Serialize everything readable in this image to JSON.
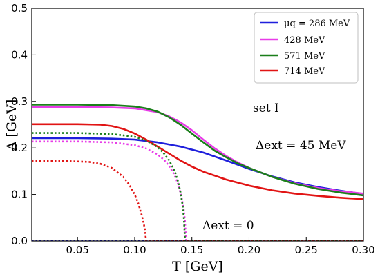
{
  "chart_data": {
    "type": "line",
    "xlabel": "T [GeV]",
    "ylabel": "Δ [GeV]",
    "xlim": [
      0.01,
      0.3
    ],
    "ylim": [
      0.0,
      0.5
    ],
    "xticks": [
      "0.05",
      "0.10",
      "0.15",
      "0.20",
      "0.25",
      "0.30"
    ],
    "yticks": [
      "0.0",
      "0.1",
      "0.2",
      "0.3",
      "0.4",
      "0.5"
    ],
    "grid": false,
    "legend_position": "top-right",
    "legend": [
      "μq = 286 MeV",
      "428 MeV",
      "571 MeV",
      "714 MeV"
    ],
    "annotations": [
      "set I",
      "Δext = 45 MeV",
      "Δext = 0"
    ],
    "series": [
      {
        "name": "μq = 286 MeV",
        "style": "solid",
        "color": "#1f1fdc",
        "x": [
          0.01,
          0.05,
          0.08,
          0.1,
          0.12,
          0.14,
          0.16,
          0.18,
          0.2,
          0.22,
          0.24,
          0.26,
          0.28,
          0.3
        ],
        "y": [
          0.221,
          0.221,
          0.22,
          0.218,
          0.212,
          0.203,
          0.19,
          0.173,
          0.155,
          0.139,
          0.126,
          0.116,
          0.108,
          0.101
        ]
      },
      {
        "name": "428 MeV",
        "style": "solid",
        "color": "#e83ce8",
        "x": [
          0.01,
          0.05,
          0.08,
          0.1,
          0.12,
          0.13,
          0.14,
          0.15,
          0.16,
          0.17,
          0.18,
          0.19,
          0.2,
          0.22,
          0.24,
          0.26,
          0.28,
          0.3
        ],
        "y": [
          0.288,
          0.288,
          0.287,
          0.285,
          0.277,
          0.268,
          0.255,
          0.238,
          0.218,
          0.199,
          0.183,
          0.169,
          0.157,
          0.138,
          0.124,
          0.114,
          0.107,
          0.102
        ]
      },
      {
        "name": "571 MeV",
        "style": "solid",
        "color": "#1a7f1a",
        "x": [
          0.01,
          0.05,
          0.08,
          0.1,
          0.11,
          0.12,
          0.13,
          0.14,
          0.15,
          0.16,
          0.17,
          0.18,
          0.19,
          0.2,
          0.22,
          0.24,
          0.26,
          0.28,
          0.3
        ],
        "y": [
          0.293,
          0.293,
          0.292,
          0.289,
          0.285,
          0.278,
          0.266,
          0.25,
          0.231,
          0.212,
          0.194,
          0.18,
          0.167,
          0.157,
          0.138,
          0.123,
          0.112,
          0.104,
          0.098
        ]
      },
      {
        "name": "714 MeV",
        "style": "solid",
        "color": "#e11414",
        "x": [
          0.01,
          0.05,
          0.07,
          0.08,
          0.09,
          0.1,
          0.11,
          0.12,
          0.13,
          0.14,
          0.15,
          0.16,
          0.18,
          0.2,
          0.22,
          0.24,
          0.26,
          0.28,
          0.3
        ],
        "y": [
          0.251,
          0.251,
          0.25,
          0.247,
          0.241,
          0.231,
          0.218,
          0.203,
          0.188,
          0.173,
          0.16,
          0.149,
          0.132,
          0.119,
          0.109,
          0.102,
          0.097,
          0.093,
          0.09
        ]
      },
      {
        "name": "",
        "style": "dotted",
        "color": "#1f1fdc",
        "x": [
          0.01,
          0.3
        ],
        "y": [
          0.0,
          0.0
        ]
      },
      {
        "name": "",
        "style": "dotted",
        "color": "#e83ce8",
        "x": [
          0.01,
          0.05,
          0.08,
          0.1,
          0.11,
          0.12,
          0.125,
          0.13,
          0.135,
          0.138,
          0.141,
          0.143,
          0.144,
          0.145,
          0.3
        ],
        "y": [
          0.214,
          0.214,
          0.212,
          0.206,
          0.199,
          0.186,
          0.176,
          0.162,
          0.141,
          0.122,
          0.094,
          0.066,
          0.041,
          0.0,
          0.0
        ]
      },
      {
        "name": "",
        "style": "dotted",
        "color": "#1a7f1a",
        "x": [
          0.01,
          0.05,
          0.08,
          0.1,
          0.11,
          0.12,
          0.125,
          0.13,
          0.135,
          0.138,
          0.14,
          0.142,
          0.143,
          0.144,
          0.3
        ],
        "y": [
          0.232,
          0.232,
          0.23,
          0.224,
          0.216,
          0.202,
          0.19,
          0.174,
          0.15,
          0.127,
          0.105,
          0.075,
          0.05,
          0.0,
          0.0
        ]
      },
      {
        "name": "",
        "style": "dotted",
        "color": "#e11414",
        "x": [
          0.01,
          0.04,
          0.06,
          0.07,
          0.08,
          0.09,
          0.095,
          0.1,
          0.103,
          0.106,
          0.108,
          0.109,
          0.11,
          0.3
        ],
        "y": [
          0.172,
          0.172,
          0.17,
          0.166,
          0.157,
          0.138,
          0.122,
          0.1,
          0.082,
          0.057,
          0.037,
          0.022,
          0.0,
          0.0
        ]
      }
    ]
  }
}
